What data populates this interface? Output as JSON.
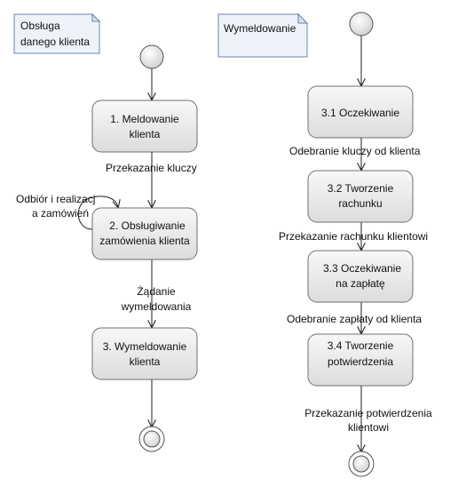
{
  "colors": {
    "state_fill_top": "#f8f8f8",
    "state_fill_bottom": "#dcdcdc",
    "note_fill": "#eef3fb",
    "note_stroke": "#6f84a8",
    "line": "#222222"
  },
  "left_lane": {
    "note": [
      "Obsługa",
      "danego klienta"
    ],
    "states": [
      [
        "1. Meldowanie",
        "klienta"
      ],
      [
        "2. Obsługiwanie",
        "zamówienia klienta"
      ],
      [
        "3. Wymeldowanie",
        "klienta"
      ]
    ],
    "transitions": {
      "t1": [
        "Przekazanie kluczy"
      ],
      "self_loop": [
        "Odbiór i realizacj",
        "a zamówień"
      ],
      "t2": [
        "Żądanie",
        "wymeldowania"
      ]
    }
  },
  "right_lane": {
    "note": [
      "Wymeldowanie"
    ],
    "states": [
      [
        "3.1 Oczekiwanie"
      ],
      [
        "3.2 Tworzenie",
        "rachunku"
      ],
      [
        "3.3 Oczekiwanie",
        "na zapłatę"
      ],
      [
        "3.4 Tworzenie",
        "potwierdzenia"
      ]
    ],
    "transitions": {
      "t1": [
        "Odebranie kluczy od klienta"
      ],
      "t2": [
        "Przekazanie rachunku klientowi"
      ],
      "t3": [
        "Odebranie zapłaty od klienta"
      ],
      "t4": [
        "Przekazanie potwierdzenia",
        "klientowi"
      ]
    }
  }
}
